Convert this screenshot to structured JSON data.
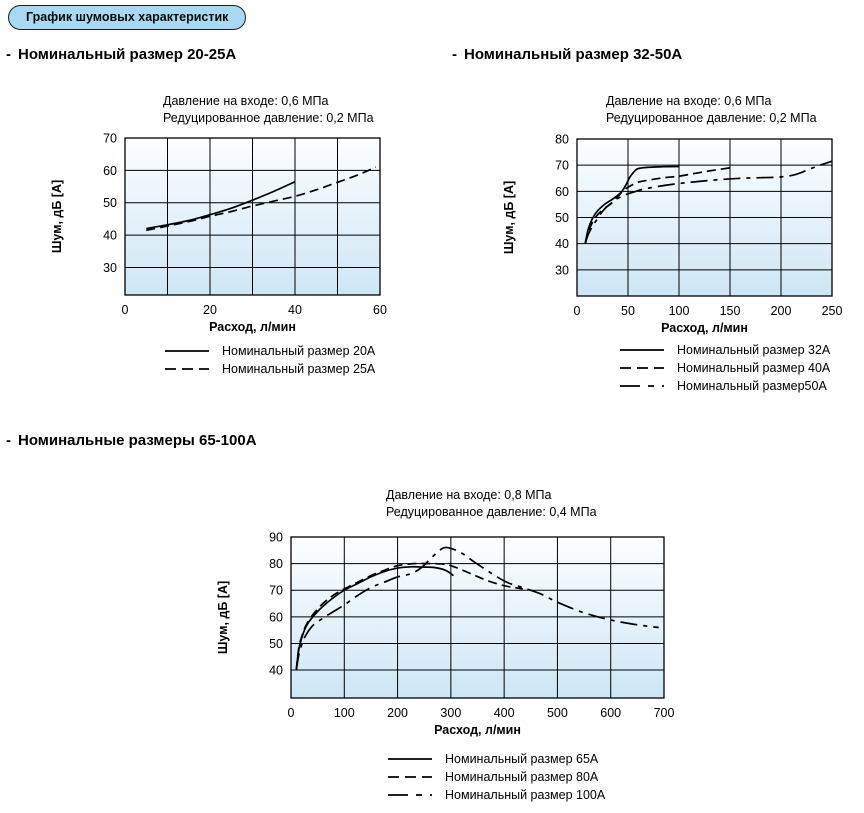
{
  "badge": {
    "label": "График шумовых характеристик"
  },
  "sections": [
    {
      "bullet": "-",
      "heading": "Номинальный размер 20-25А"
    },
    {
      "bullet": "-",
      "heading": "Номинальный размер 32-50А"
    },
    {
      "bullet": "-",
      "heading": "Номинальные размеры 65-100А"
    }
  ],
  "colors": {
    "badge_fill": "#a9d9f2",
    "badge_border": "#1c1c1c",
    "plot_gradient_top": "#fdfeff",
    "plot_gradient_bottom": "#cde6f5",
    "grid": "#000000",
    "curve": "#000000"
  },
  "chart_data": [
    {
      "type": "line",
      "title_lines": [
        "Давление на входе: 0,6 МПа",
        "Редуцированное давление: 0,2 МПа"
      ],
      "xlabel": "Расход, л/мин",
      "ylabel": "Шум, дБ [А]",
      "xlim": [
        0,
        60
      ],
      "ylim": [
        21.5,
        70
      ],
      "xticks": [
        0,
        20,
        40,
        60
      ],
      "xgrid": [
        10,
        20,
        30,
        40,
        50
      ],
      "yticks": [
        30,
        40,
        50,
        60,
        70
      ],
      "ygrid": [
        30,
        40,
        50,
        60
      ],
      "grid": true,
      "legend_position": "below",
      "series": [
        {
          "name": "Номинальный размер 20А",
          "style": "solid",
          "x": [
            5,
            10,
            15,
            20,
            25,
            30,
            35,
            40
          ],
          "y": [
            42,
            43.2,
            44.5,
            46.3,
            48.3,
            50.8,
            53.5,
            56.5
          ]
        },
        {
          "name": "Номинальный размер 25А",
          "style": "dashed",
          "x": [
            5,
            10,
            15,
            20,
            25,
            30,
            35,
            40,
            45,
            50,
            55,
            59
          ],
          "y": [
            41.5,
            42.8,
            44.2,
            45.8,
            47.3,
            49,
            50.5,
            52,
            54,
            56.3,
            58.7,
            61
          ]
        }
      ]
    },
    {
      "type": "line",
      "title_lines": [
        "Давление на входе: 0,6 МПа",
        "Редуцированное давление: 0,2 МПа"
      ],
      "xlabel": "Расход, л/мин",
      "ylabel": "Шум, дБ [А]",
      "xlim": [
        0,
        250
      ],
      "ylim": [
        20,
        80
      ],
      "xticks": [
        0,
        50,
        100,
        150,
        200,
        250
      ],
      "xgrid": [
        50,
        100,
        150,
        200
      ],
      "yticks": [
        30,
        40,
        50,
        60,
        70,
        80
      ],
      "ygrid": [
        30,
        40,
        50,
        60,
        70
      ],
      "grid": true,
      "legend_position": "below",
      "series": [
        {
          "name": "Номинальный размер 32А",
          "style": "solid",
          "x": [
            8,
            11,
            15,
            20,
            27,
            34,
            40,
            44,
            48,
            52,
            56,
            60,
            70,
            85,
            100
          ],
          "y": [
            40,
            45.5,
            49.5,
            52.5,
            55,
            56.8,
            58.5,
            60,
            62.5,
            65.5,
            67.5,
            68.7,
            69.2,
            69.4,
            69.5
          ]
        },
        {
          "name": "Номинальный размер 40А",
          "style": "dashed",
          "x": [
            8,
            11,
            15,
            20,
            27,
            34,
            40,
            46,
            52,
            60,
            70,
            85,
            100,
            115,
            130,
            150
          ],
          "y": [
            40,
            44.5,
            48,
            51,
            53.5,
            55.5,
            58,
            60.5,
            62,
            63.5,
            64.3,
            65.2,
            65.8,
            66.8,
            67.8,
            69
          ]
        },
        {
          "name": "Номинальный размер50А",
          "style": "dashdot",
          "x": [
            8,
            11,
            15,
            20,
            26,
            33,
            40,
            48,
            56,
            65,
            80,
            100,
            120,
            140,
            160,
            180,
            200,
            215,
            230,
            240,
            250
          ],
          "y": [
            40,
            43.5,
            46.5,
            49.5,
            52.8,
            55.3,
            57.3,
            58.8,
            59.8,
            60.8,
            61.9,
            63,
            63.8,
            64.5,
            65,
            65.2,
            65.5,
            66.5,
            68.8,
            70.2,
            71.5
          ]
        }
      ]
    },
    {
      "type": "line",
      "title_lines": [
        "Давление на входе: 0,8 МПа",
        "Редуцированное давление: 0,4 МПа"
      ],
      "xlabel": "Расход, л/мин",
      "ylabel": "Шум, дБ [А]",
      "xlim": [
        0,
        700
      ],
      "ylim": [
        29.5,
        90
      ],
      "xticks": [
        0,
        100,
        200,
        300,
        400,
        500,
        600,
        700
      ],
      "xgrid": [
        100,
        200,
        300,
        400,
        500,
        600
      ],
      "yticks": [
        40,
        50,
        60,
        70,
        80,
        90
      ],
      "ygrid": [
        40,
        50,
        60,
        70,
        80
      ],
      "grid": true,
      "legend_position": "below",
      "series": [
        {
          "name": "Номинальный размер 65А",
          "style": "solid",
          "x": [
            10,
            14,
            20,
            30,
            50,
            75,
            100,
            125,
            150,
            175,
            200,
            225,
            250,
            270,
            290,
            305
          ],
          "y": [
            40,
            47,
            52,
            57,
            62,
            66.5,
            70,
            72.5,
            75,
            77,
            78.3,
            78.8,
            78.7,
            78.5,
            77.5,
            75.5
          ]
        },
        {
          "name": "Номинальный размер 80А",
          "style": "dashed",
          "x": [
            10,
            14,
            20,
            30,
            50,
            75,
            100,
            125,
            150,
            175,
            200,
            230,
            260,
            290,
            310,
            340,
            370,
            400,
            420,
            435
          ],
          "y": [
            40,
            47.5,
            52.5,
            57.5,
            63,
            67.5,
            70.5,
            73,
            75.5,
            77.5,
            79.2,
            80,
            80,
            79.7,
            78.5,
            76,
            73.5,
            71.7,
            71,
            70.5
          ]
        },
        {
          "name": "Номинальный размер 100А",
          "style": "dashdot",
          "x": [
            10,
            15,
            25,
            40,
            60,
            80,
            100,
            125,
            150,
            175,
            200,
            225,
            245,
            265,
            285,
            300,
            320,
            345,
            375,
            405,
            435,
            470,
            500,
            550,
            600,
            650,
            690
          ],
          "y": [
            40,
            46,
            52,
            56.5,
            59.5,
            62,
            64.5,
            68,
            71,
            73,
            75,
            76.2,
            78.5,
            82.5,
            85.8,
            85.7,
            84,
            80.5,
            76.5,
            73,
            71,
            68.5,
            65.5,
            61.5,
            58.8,
            57,
            56
          ]
        }
      ]
    }
  ]
}
